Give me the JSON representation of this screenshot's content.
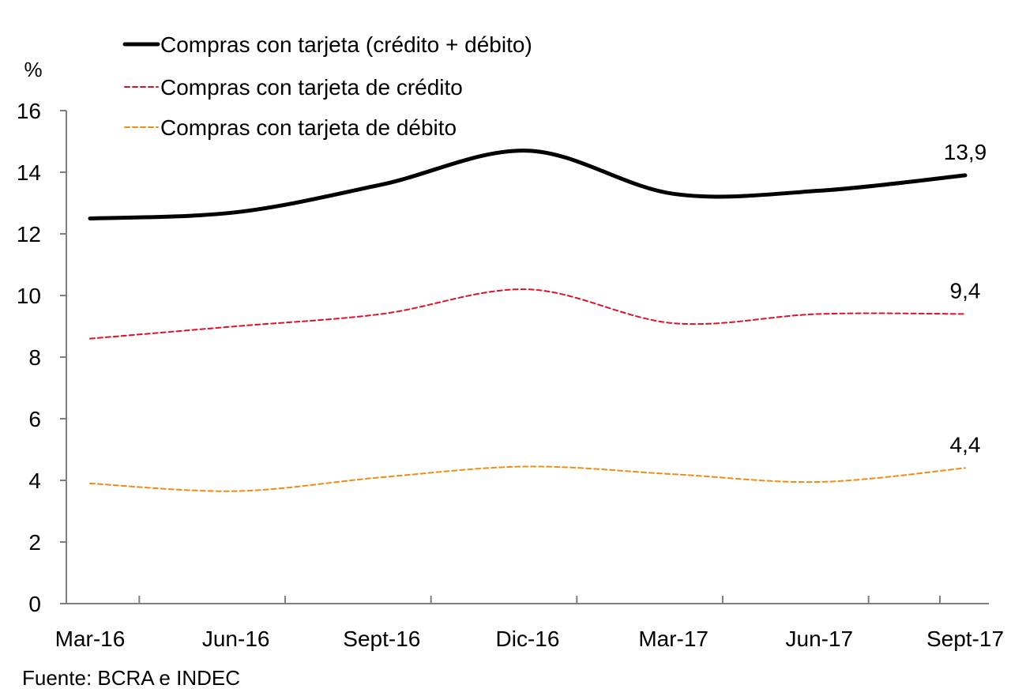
{
  "chart_data": {
    "type": "line",
    "ylabel": "%",
    "ylim": [
      0,
      16
    ],
    "yticks": [
      0,
      2,
      4,
      6,
      8,
      10,
      12,
      14,
      16
    ],
    "categories": [
      "Mar-16",
      "Jun-16",
      "Sept-16",
      "Dic-16",
      "Mar-17",
      "Jun-17",
      "Sept-17"
    ],
    "series": [
      {
        "name": "Compras con tarjeta (crédito + débito)",
        "color": "#000000",
        "style": "solid",
        "values": [
          12.5,
          12.7,
          13.6,
          14.7,
          13.3,
          13.4,
          13.9
        ],
        "end_label": "13,9"
      },
      {
        "name": "Compras con tarjeta de crédito",
        "color": "#e0102a",
        "style": "dashed",
        "values": [
          8.6,
          9.0,
          9.4,
          10.2,
          9.1,
          9.4,
          9.4
        ],
        "end_label": "9,4"
      },
      {
        "name": "Compras con tarjeta de débito",
        "color": "#f08c14",
        "style": "dashed",
        "values": [
          3.9,
          3.65,
          4.1,
          4.45,
          4.2,
          3.95,
          4.4
        ],
        "end_label": "4,4"
      }
    ],
    "legend_position": "top-left",
    "grid": false
  },
  "source": "Fuente:  BCRA e INDEC"
}
